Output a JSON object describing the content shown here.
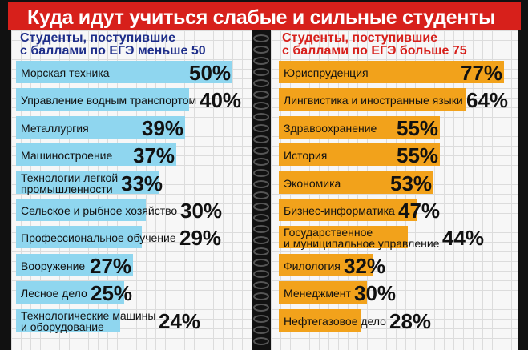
{
  "title": "Куда идут учиться слабые и сильные студенты",
  "chart_data": [
    {
      "type": "bar",
      "title": "Студенты, поступившие\nс баллами по ЕГЭ меньше 50",
      "categories": [
        "Морская техника",
        "Управление водным транспортом",
        "Металлургия",
        "Машиностроение",
        "Технологии легкой\nпромышленности",
        "Сельское и рыбное хозяйство",
        "Профессиональное обучение",
        "Вооружение",
        "Лесное дело",
        "Технологические машины\nи оборудование"
      ],
      "values": [
        50,
        40,
        39,
        37,
        33,
        30,
        29,
        27,
        25,
        24
      ],
      "labels": [
        "50%",
        "40%",
        "39%",
        "37%",
        "33%",
        "30%",
        "29%",
        "27%",
        "25%",
        "24%"
      ],
      "color": "#8fd6ef"
    },
    {
      "type": "bar",
      "title": "Студенты, поступившие\nс баллами по ЕГЭ больше 75",
      "categories": [
        "Юриспруденция",
        "Лингвистика и иностранные языки",
        "Здравоохранение",
        "История",
        "Экономика",
        "Бизнес-информатика",
        "Государственное\nи муниципальное управление",
        "Филология",
        "Менеджмент",
        "Нефтегазовое дело"
      ],
      "values": [
        77,
        64,
        55,
        55,
        53,
        47,
        44,
        32,
        30,
        28
      ],
      "labels": [
        "77%",
        "64%",
        "55%",
        "55%",
        "53%",
        "47%",
        "44%",
        "32%",
        "30%",
        "28%"
      ],
      "color": "#f2a21b"
    }
  ],
  "colors": {
    "title_bg": "#d7201b",
    "left_subtitle": "#1e2e8a",
    "right_subtitle": "#d7201b"
  }
}
